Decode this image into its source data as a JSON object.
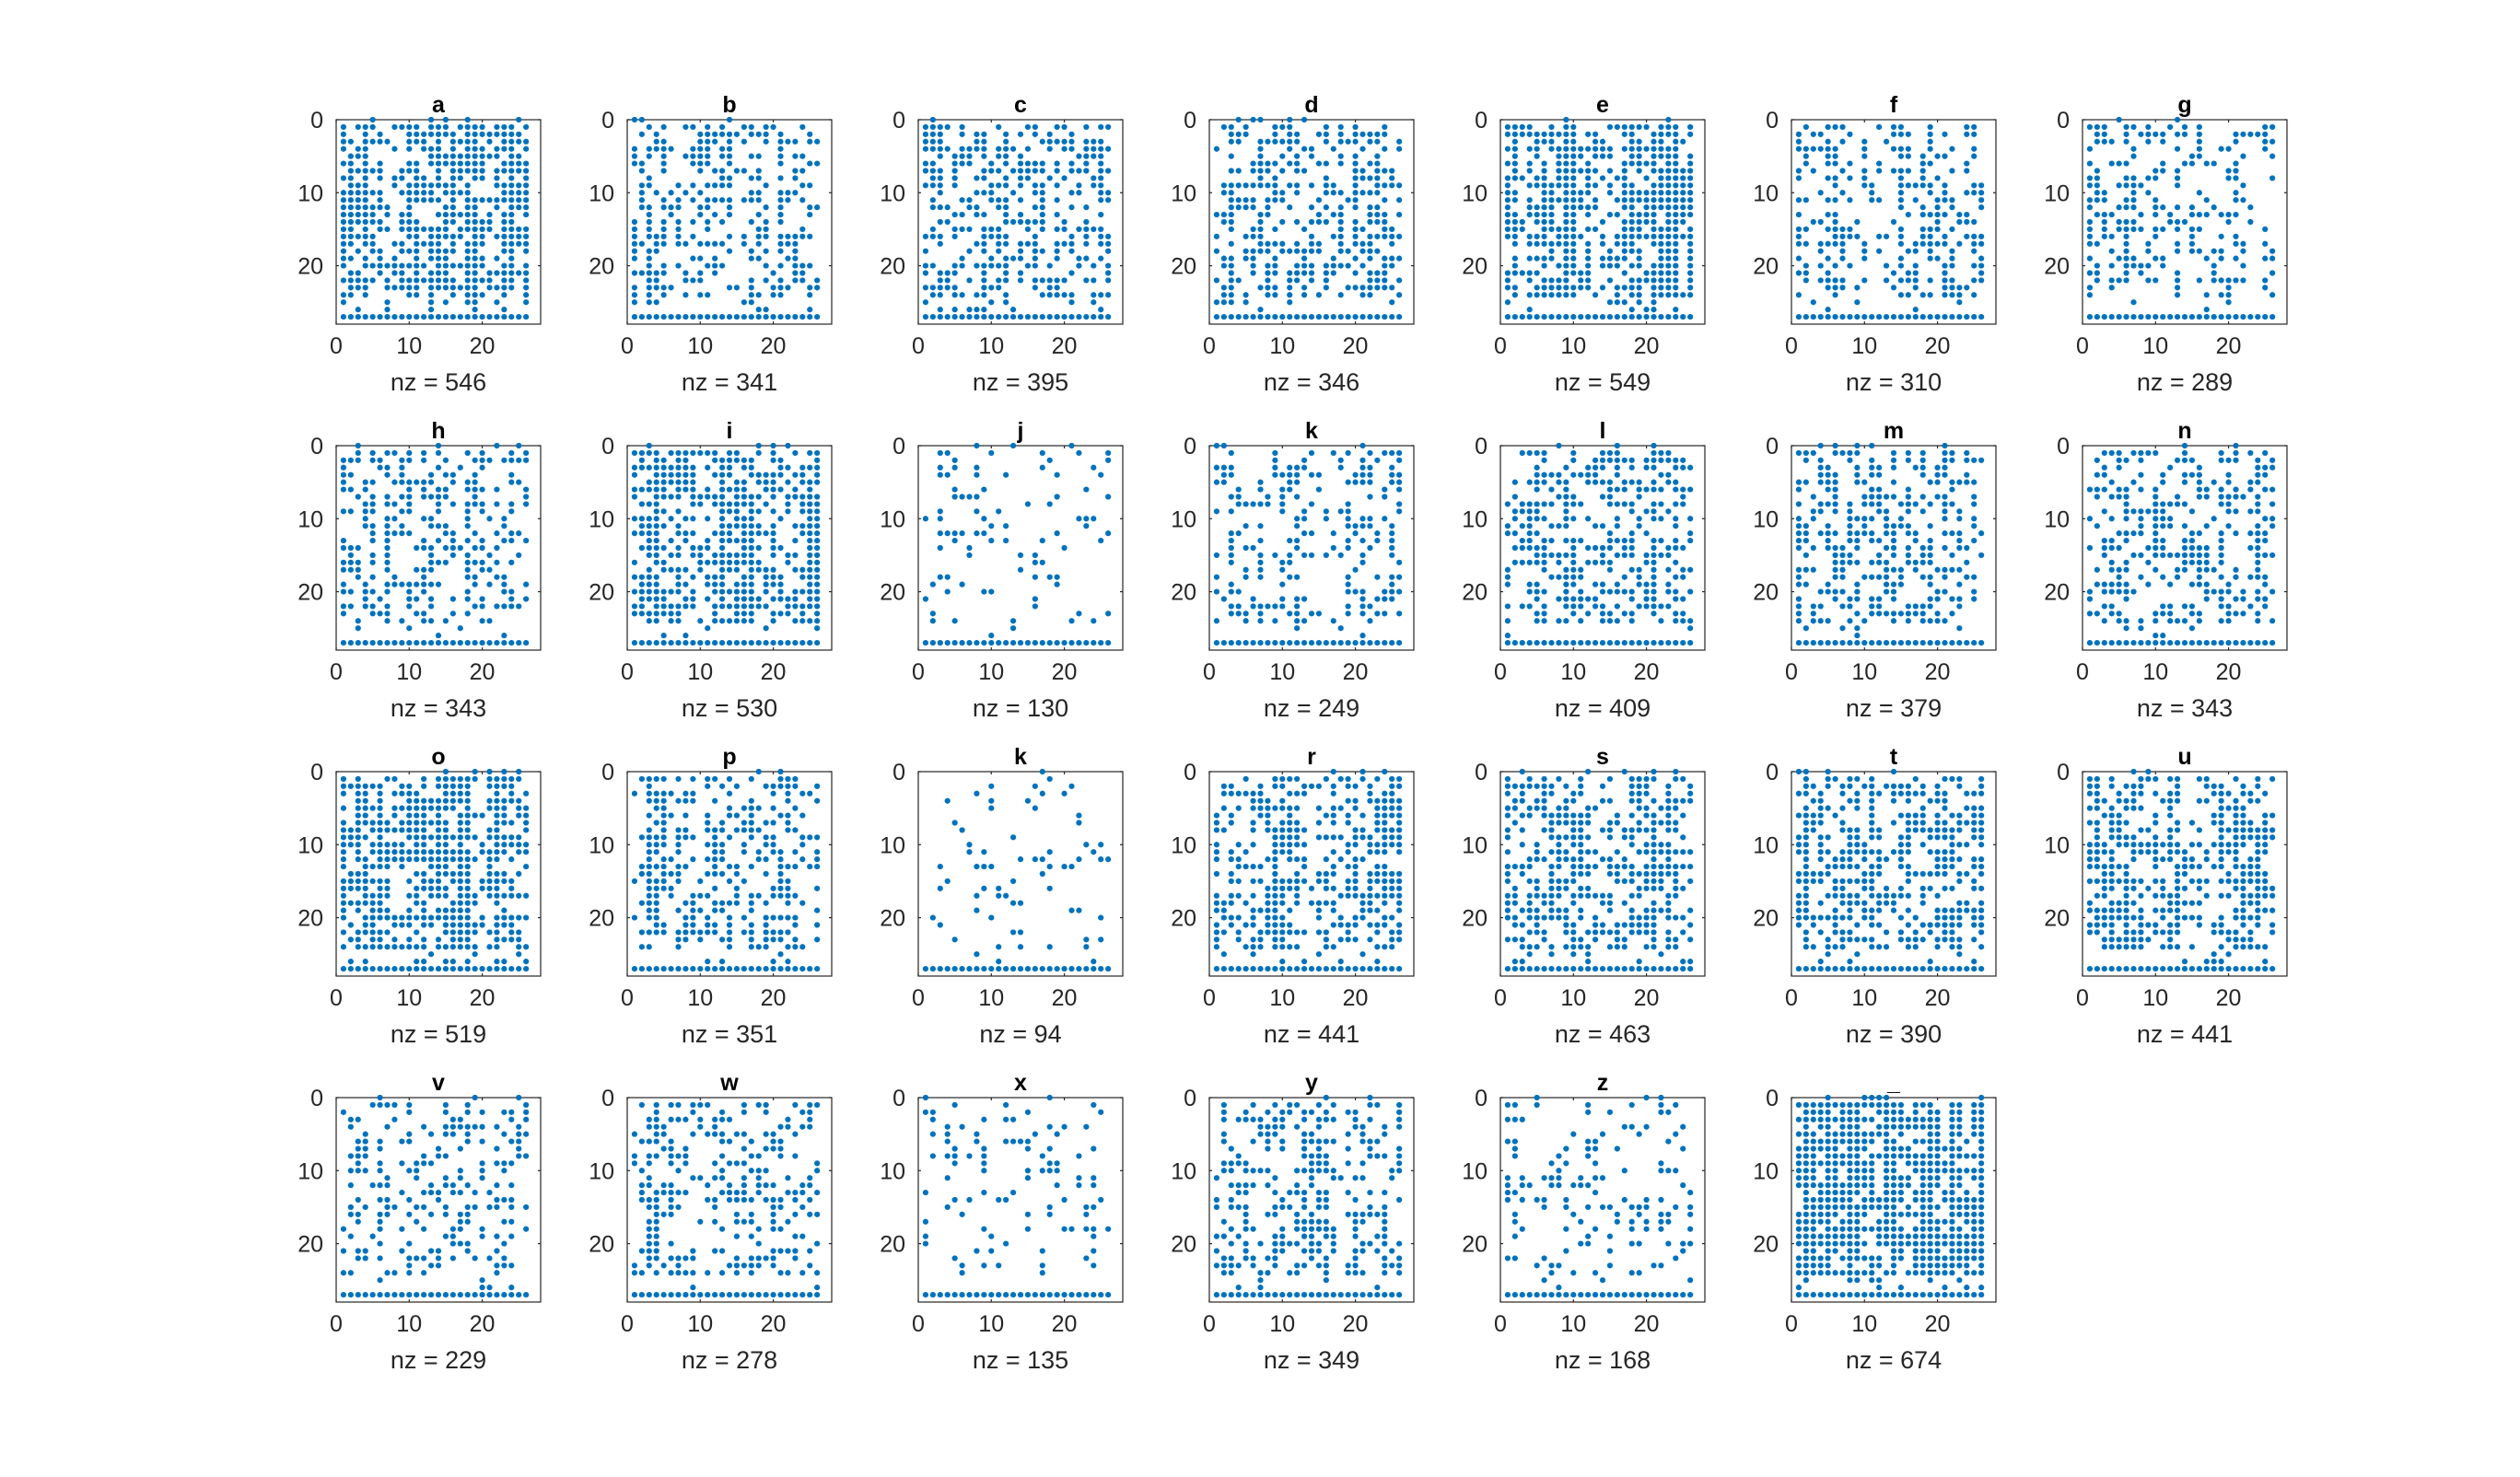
{
  "chart_data": {
    "type": "scatter",
    "subtype": "spy (sparsity pattern)",
    "marker_color": "#0072BD",
    "grid": false,
    "axis_range": [
      0,
      28
    ],
    "ticks": [
      0,
      10,
      20
    ],
    "y_axis_direction": "down",
    "panels": [
      {
        "title": "a",
        "nz": 546,
        "xlabel": "nz = 546",
        "density": 0.7
      },
      {
        "title": "b",
        "nz": 341,
        "xlabel": "nz = 341",
        "density": 0.43
      },
      {
        "title": "c",
        "nz": 395,
        "xlabel": "nz = 395",
        "density": 0.5
      },
      {
        "title": "d",
        "nz": 346,
        "xlabel": "nz = 346",
        "density": 0.44
      },
      {
        "title": "e",
        "nz": 549,
        "xlabel": "nz = 549",
        "density": 0.7
      },
      {
        "title": "f",
        "nz": 310,
        "xlabel": "nz = 310",
        "density": 0.4
      },
      {
        "title": "g",
        "nz": 289,
        "xlabel": "nz = 289",
        "density": 0.37
      },
      {
        "title": "h",
        "nz": 343,
        "xlabel": "nz = 343",
        "density": 0.44
      },
      {
        "title": "i",
        "nz": 530,
        "xlabel": "nz = 530",
        "density": 0.68
      },
      {
        "title": "j",
        "nz": 130,
        "xlabel": "nz = 130",
        "density": 0.17
      },
      {
        "title": "k",
        "nz": 249,
        "xlabel": "nz = 249",
        "density": 0.32
      },
      {
        "title": "l",
        "nz": 409,
        "xlabel": "nz = 409",
        "density": 0.52
      },
      {
        "title": "m",
        "nz": 379,
        "xlabel": "nz = 379",
        "density": 0.48
      },
      {
        "title": "n",
        "nz": 343,
        "xlabel": "nz = 343",
        "density": 0.44
      },
      {
        "title": "o",
        "nz": 519,
        "xlabel": "nz = 519",
        "density": 0.66
      },
      {
        "title": "p",
        "nz": 351,
        "xlabel": "nz = 351",
        "density": 0.45
      },
      {
        "title": "k",
        "nz": 94,
        "xlabel": "nz = 94",
        "density": 0.12
      },
      {
        "title": "r",
        "nz": 441,
        "xlabel": "nz = 441",
        "density": 0.56
      },
      {
        "title": "s",
        "nz": 463,
        "xlabel": "nz = 463",
        "density": 0.59
      },
      {
        "title": "t",
        "nz": 390,
        "xlabel": "nz = 390",
        "density": 0.5
      },
      {
        "title": "u",
        "nz": 441,
        "xlabel": "nz = 441",
        "density": 0.56
      },
      {
        "title": "v",
        "nz": 229,
        "xlabel": "nz = 229",
        "density": 0.29
      },
      {
        "title": "w",
        "nz": 278,
        "xlabel": "nz = 278",
        "density": 0.35
      },
      {
        "title": "x",
        "nz": 135,
        "xlabel": "nz = 135",
        "density": 0.17
      },
      {
        "title": "y",
        "nz": 349,
        "xlabel": "nz = 349",
        "density": 0.45
      },
      {
        "title": "z",
        "nz": 168,
        "xlabel": "nz = 168",
        "density": 0.21
      },
      {
        "title": "_",
        "nz": 674,
        "xlabel": "nz = 674",
        "density": 0.86
      }
    ]
  }
}
